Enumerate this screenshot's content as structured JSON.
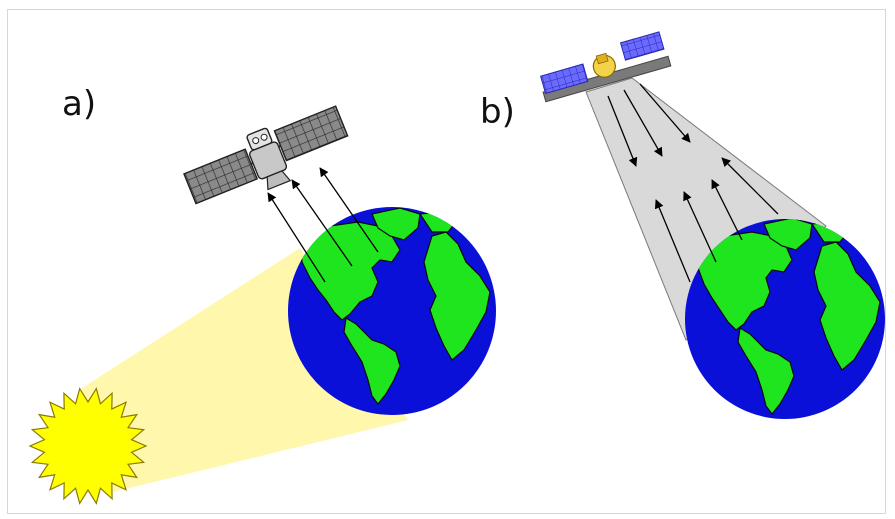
{
  "labels": {
    "panel_a": "a)",
    "panel_b": "b)"
  },
  "icons": {
    "sun": "sun-icon",
    "earth": "earth-globe-icon",
    "passive_satellite": "satellite-icon",
    "active_satellite": "radar-satellite-icon"
  },
  "colors": {
    "ocean": "#0b10d8",
    "land": "#1fe51f",
    "sun": "#ffff00",
    "sunlight": "#fff7a8",
    "radar_beam": "#d9d9d9",
    "panel_blue": "#5a5aff",
    "panel_gray": "#7a7a7a",
    "arrow": "#000000"
  }
}
